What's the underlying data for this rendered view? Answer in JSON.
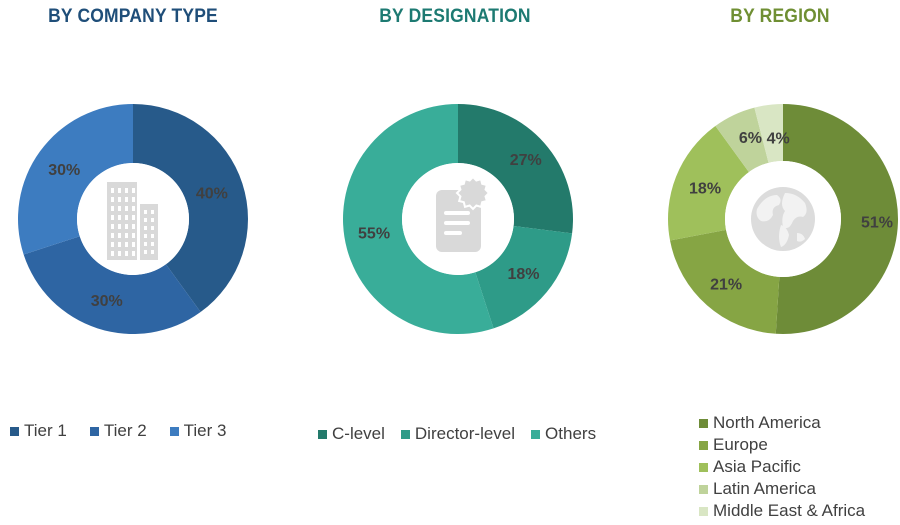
{
  "chart_data": [
    {
      "type": "pie",
      "title": "BY COMPANY TYPE",
      "title_color": "#1f4e79",
      "categories": [
        "Tier 1",
        "Tier 2",
        "Tier 3"
      ],
      "values": [
        40,
        30,
        30
      ],
      "labels": [
        "40%",
        "30%",
        "30%"
      ],
      "colors": [
        "#275a8a",
        "#2e65a3",
        "#3d7cc0"
      ],
      "legend_position": "bottom",
      "center_icon": "buildings-icon"
    },
    {
      "type": "pie",
      "title": "BY DESIGNATION",
      "title_color": "#1d7a72",
      "categories": [
        "C-level",
        "Director-level",
        "Others"
      ],
      "values": [
        27,
        18,
        55
      ],
      "labels": [
        "27%",
        "18%",
        "55%"
      ],
      "colors": [
        "#237a6b",
        "#2e9b88",
        "#39ad99"
      ],
      "legend_position": "bottom",
      "center_icon": "certificate-document-icon"
    },
    {
      "type": "pie",
      "title": "BY REGION",
      "title_color": "#6f8f33",
      "categories": [
        "North America",
        "Europe",
        "Asia Pacific",
        "Latin America",
        "Middle East & Africa"
      ],
      "values": [
        51,
        21,
        18,
        6,
        4
      ],
      "labels": [
        "51%",
        "21%",
        "18%",
        "6%",
        "4%"
      ],
      "colors": [
        "#6e8c38",
        "#86a544",
        "#9fc05b",
        "#bfd39b",
        "#d9e6c4"
      ],
      "legend_position": "bottom-right",
      "center_icon": "globe-icon"
    }
  ]
}
